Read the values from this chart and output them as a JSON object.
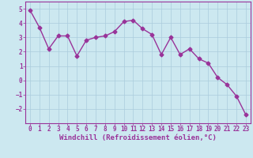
{
  "x": [
    0,
    1,
    2,
    3,
    4,
    5,
    6,
    7,
    8,
    9,
    10,
    11,
    12,
    13,
    14,
    15,
    16,
    17,
    18,
    19,
    20,
    21,
    22,
    23
  ],
  "y": [
    4.9,
    3.7,
    2.2,
    3.1,
    3.1,
    1.7,
    2.8,
    3.0,
    3.1,
    3.4,
    4.1,
    4.2,
    3.6,
    3.2,
    1.8,
    3.0,
    1.8,
    2.2,
    1.5,
    1.2,
    0.2,
    -0.3,
    -1.1,
    -2.4
  ],
  "line_color": "#993399",
  "marker": "D",
  "markersize": 2.5,
  "linewidth": 1.0,
  "bg_color": "#cce8f0",
  "grid_color": "#aaccdd",
  "xlabel": "Windchill (Refroidissement éolien,°C)",
  "xlabel_color": "#993399",
  "tick_color": "#993399",
  "xlabel_fontsize": 6.5,
  "tick_fontsize": 5.5,
  "ylim": [
    -3,
    5.5
  ],
  "xlim": [
    -0.5,
    23.5
  ],
  "yticks": [
    -2,
    -1,
    0,
    1,
    2,
    3,
    4,
    5
  ],
  "xticks": [
    0,
    1,
    2,
    3,
    4,
    5,
    6,
    7,
    8,
    9,
    10,
    11,
    12,
    13,
    14,
    15,
    16,
    17,
    18,
    19,
    20,
    21,
    22,
    23
  ]
}
